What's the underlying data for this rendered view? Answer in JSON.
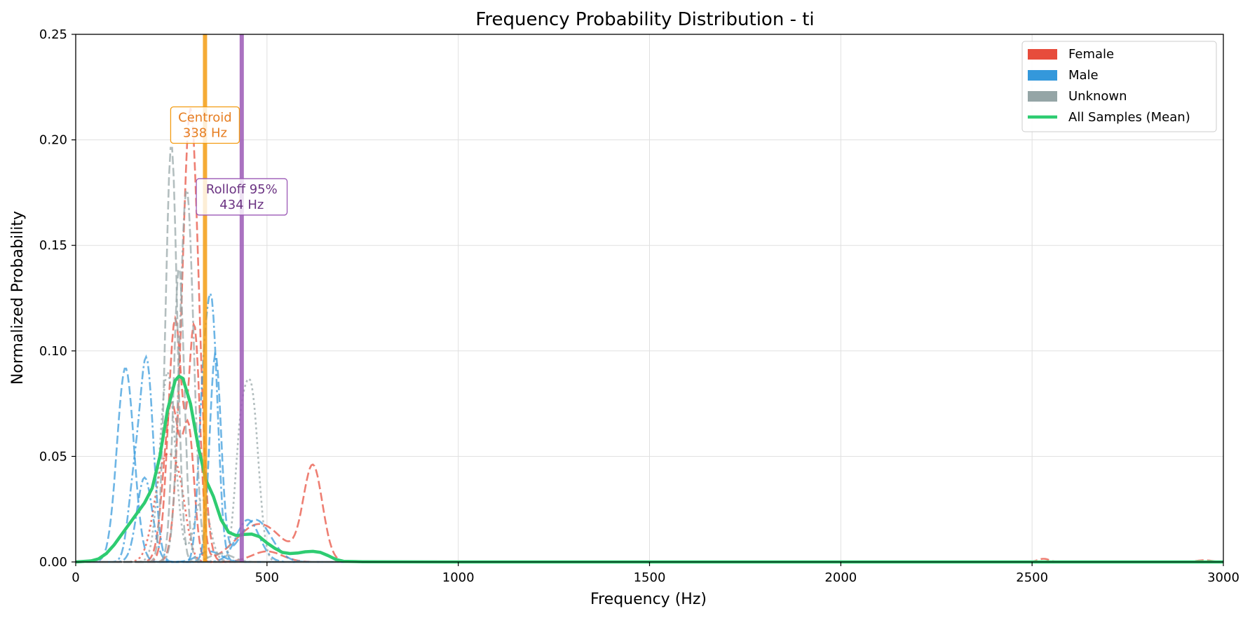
{
  "chart_data": {
    "type": "line",
    "title": "Frequency Probability Distribution - ti",
    "xlabel": "Frequency (Hz)",
    "ylabel": "Normalized Probability",
    "xlim": [
      0,
      3000
    ],
    "ylim": [
      0,
      0.25
    ],
    "xticks": [
      0,
      500,
      1000,
      1500,
      2000,
      2500,
      3000
    ],
    "yticks": [
      0.0,
      0.05,
      0.1,
      0.15,
      0.2,
      0.25
    ],
    "xtick_labels": [
      "0",
      "500",
      "1000",
      "1500",
      "2000",
      "2500",
      "3000"
    ],
    "ytick_labels": [
      "0.00",
      "0.05",
      "0.10",
      "0.15",
      "0.20",
      "0.25"
    ],
    "grid": true,
    "legend_position": "top-right",
    "colors": {
      "female": "#e74c3c",
      "male": "#3498db",
      "unknown": "#95a5a6",
      "mean": "#2ecc71",
      "centroid": "#f39c12",
      "rolloff": "#9b59b6"
    },
    "legend": [
      {
        "label": "Female",
        "kind": "patch",
        "color": "#e74c3c"
      },
      {
        "label": "Male",
        "kind": "patch",
        "color": "#3498db"
      },
      {
        "label": "Unknown",
        "kind": "patch",
        "color": "#95a5a6"
      },
      {
        "label": "All Samples (Mean)",
        "kind": "line",
        "color": "#2ecc71"
      }
    ],
    "sample_series": [
      {
        "group": "Female",
        "color": "#e74c3c",
        "dash": "dashed",
        "peaks": [
          [
            300,
            0.215,
            22
          ],
          [
            500,
            0.005,
            40
          ]
        ]
      },
      {
        "group": "Female",
        "color": "#e74c3c",
        "dash": "dashed",
        "peaks": [
          [
            260,
            0.115,
            18
          ],
          [
            310,
            0.11,
            15
          ],
          [
            480,
            0.018,
            60
          ],
          [
            620,
            0.045,
            25
          ]
        ]
      },
      {
        "group": "Female",
        "color": "#e74c3c",
        "dash": "dashed",
        "peaks": [
          [
            250,
            0.075,
            20
          ],
          [
            295,
            0.06,
            15
          ]
        ]
      },
      {
        "group": "Female",
        "color": "#e74c3c",
        "dash": "dotted",
        "peaks": [
          [
            230,
            0.045,
            25
          ],
          [
            270,
            0.03,
            20
          ]
        ]
      },
      {
        "group": "Female",
        "color": "#e74c3c",
        "dash": "dashed",
        "peaks": [
          [
            2530,
            0.0015,
            15
          ],
          [
            2950,
            0.0008,
            20
          ]
        ]
      },
      {
        "group": "Male",
        "color": "#3498db",
        "dash": "dashed",
        "peaks": [
          [
            130,
            0.092,
            22
          ],
          [
            350,
            0.005,
            30
          ]
        ]
      },
      {
        "group": "Male",
        "color": "#3498db",
        "dash": "dashdot",
        "peaks": [
          [
            185,
            0.095,
            18
          ],
          [
            150,
            0.03,
            15
          ]
        ]
      },
      {
        "group": "Male",
        "color": "#3498db",
        "dash": "dashdot",
        "peaks": [
          [
            355,
            0.12,
            16
          ],
          [
            330,
            0.05,
            12
          ]
        ]
      },
      {
        "group": "Male",
        "color": "#3498db",
        "dash": "dashed",
        "peaks": [
          [
            365,
            0.098,
            15
          ],
          [
            470,
            0.02,
            40
          ]
        ]
      },
      {
        "group": "Male",
        "color": "#3498db",
        "dash": "dashdot",
        "peaks": [
          [
            180,
            0.04,
            20
          ],
          [
            450,
            0.02,
            30
          ]
        ]
      },
      {
        "group": "Unknown",
        "color": "#95a5a6",
        "dash": "dashed",
        "peaks": [
          [
            250,
            0.198,
            15
          ]
        ]
      },
      {
        "group": "Unknown",
        "color": "#95a5a6",
        "dash": "dashdot",
        "peaks": [
          [
            290,
            0.177,
            18
          ]
        ]
      },
      {
        "group": "Unknown",
        "color": "#95a5a6",
        "dash": "dotted",
        "peaks": [
          [
            460,
            0.077,
            18
          ],
          [
            430,
            0.05,
            15
          ]
        ]
      },
      {
        "group": "Unknown",
        "color": "#95a5a6",
        "dash": "dotted",
        "peaks": [
          [
            240,
            0.09,
            20
          ],
          [
            330,
            0.03,
            20
          ]
        ]
      },
      {
        "group": "Unknown",
        "color": "#95a5a6",
        "dash": "dashed",
        "peaks": [
          [
            270,
            0.14,
            14
          ],
          [
            380,
            0.004,
            30
          ]
        ]
      }
    ],
    "mean_series": {
      "name": "All Samples (Mean)",
      "color": "#2ecc71",
      "x": [
        0,
        40,
        60,
        80,
        100,
        120,
        140,
        160,
        180,
        200,
        220,
        240,
        260,
        270,
        280,
        300,
        320,
        340,
        360,
        380,
        400,
        420,
        440,
        460,
        480,
        500,
        520,
        540,
        560,
        580,
        600,
        620,
        640,
        660,
        680,
        700,
        750,
        1000,
        2000,
        3000
      ],
      "y": [
        0,
        0.0005,
        0.0015,
        0.004,
        0.008,
        0.013,
        0.018,
        0.023,
        0.028,
        0.035,
        0.05,
        0.072,
        0.086,
        0.088,
        0.087,
        0.075,
        0.055,
        0.039,
        0.031,
        0.02,
        0.014,
        0.0125,
        0.013,
        0.0132,
        0.012,
        0.009,
        0.0065,
        0.0045,
        0.004,
        0.0042,
        0.0048,
        0.005,
        0.0045,
        0.003,
        0.0012,
        0.0003,
        0.0001,
        0.0,
        0.0,
        0.0
      ]
    },
    "vlines": [
      {
        "x": 338,
        "color": "#f39c12",
        "text_color": "#e67e22",
        "label_lines": [
          "Centroid",
          "338 Hz"
        ],
        "label_y": 0.207
      },
      {
        "x": 434,
        "color": "#9b59b6",
        "text_color": "#6c3483",
        "label_lines": [
          "Rolloff 95%",
          "434 Hz"
        ],
        "label_y": 0.173
      }
    ]
  }
}
